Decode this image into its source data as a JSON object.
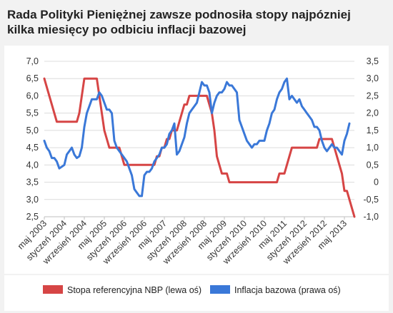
{
  "title": {
    "line1": "Rada Polityki Pieniężnej zawsze podnosiła stopy najpózniej",
    "line2": "kilka miesięcy po odbiciu inflacji bazowej"
  },
  "chart_data": {
    "type": "line",
    "x_labels": [
      "maj 2003",
      "styczeń 2004",
      "wrzesień 2004",
      "maj 2005",
      "styczeń 2006",
      "wrzesień 2006",
      "maj 2007",
      "styczeń 2008",
      "wrzesień 2008",
      "maj 2009",
      "styczeń 2010",
      "wrzesień 2010",
      "maj 2011",
      "styczeń 2012",
      "wrzesień 2012",
      "maj 2013"
    ],
    "x_label_month_index": [
      0,
      8,
      16,
      24,
      32,
      40,
      48,
      56,
      64,
      72,
      80,
      88,
      96,
      104,
      112,
      120
    ],
    "x_start": "2003-05",
    "left_axis": {
      "ylim": [
        2.5,
        7.0
      ],
      "ticks": [
        "7,0",
        "6,5",
        "6,0",
        "5,5",
        "5,0",
        "4,5",
        "4,0",
        "3,5",
        "3,0",
        "2,5"
      ],
      "tick_values": [
        7.0,
        6.5,
        6.0,
        5.5,
        5.0,
        4.5,
        4.0,
        3.5,
        3.0,
        2.5
      ]
    },
    "right_axis": {
      "ylim": [
        -1.0,
        3.5
      ],
      "ticks": [
        "3,5",
        "3,0",
        "2,5",
        "2,0",
        "1,5",
        "1,0",
        "0,5",
        "0",
        "-0,5",
        "-1,0"
      ],
      "tick_values": [
        3.5,
        3.0,
        2.5,
        2.0,
        1.5,
        1.0,
        0.5,
        0.0,
        -0.5,
        -1.0
      ]
    },
    "grid": true,
    "legend_position": "bottom",
    "series": [
      {
        "name": "Stopa referencyjna NBP (lewa oś)",
        "axis": "left",
        "color": "#d64545",
        "points": [
          [
            0,
            6.5
          ],
          [
            1,
            6.25
          ],
          [
            2,
            6.0
          ],
          [
            3,
            5.75
          ],
          [
            4,
            5.5
          ],
          [
            5,
            5.25
          ],
          [
            6,
            5.25
          ],
          [
            7,
            5.25
          ],
          [
            8,
            5.25
          ],
          [
            9,
            5.25
          ],
          [
            10,
            5.25
          ],
          [
            11,
            5.25
          ],
          [
            12,
            5.25
          ],
          [
            13,
            5.25
          ],
          [
            14,
            5.5
          ],
          [
            15,
            6.0
          ],
          [
            16,
            6.5
          ],
          [
            17,
            6.5
          ],
          [
            18,
            6.5
          ],
          [
            19,
            6.5
          ],
          [
            20,
            6.5
          ],
          [
            21,
            6.5
          ],
          [
            22,
            6.0
          ],
          [
            23,
            5.5
          ],
          [
            24,
            5.0
          ],
          [
            25,
            4.75
          ],
          [
            26,
            4.5
          ],
          [
            27,
            4.5
          ],
          [
            28,
            4.5
          ],
          [
            29,
            4.5
          ],
          [
            30,
            4.5
          ],
          [
            31,
            4.25
          ],
          [
            32,
            4.0
          ],
          [
            33,
            4.0
          ],
          [
            34,
            4.0
          ],
          [
            35,
            4.0
          ],
          [
            36,
            4.0
          ],
          [
            37,
            4.0
          ],
          [
            38,
            4.0
          ],
          [
            39,
            4.0
          ],
          [
            40,
            4.0
          ],
          [
            41,
            4.0
          ],
          [
            42,
            4.0
          ],
          [
            43,
            4.0
          ],
          [
            44,
            4.0
          ],
          [
            45,
            4.25
          ],
          [
            46,
            4.25
          ],
          [
            47,
            4.5
          ],
          [
            48,
            4.5
          ],
          [
            49,
            4.75
          ],
          [
            50,
            4.75
          ],
          [
            51,
            5.0
          ],
          [
            52,
            5.0
          ],
          [
            53,
            5.0
          ],
          [
            54,
            5.25
          ],
          [
            55,
            5.5
          ],
          [
            56,
            5.75
          ],
          [
            57,
            5.75
          ],
          [
            58,
            6.0
          ],
          [
            59,
            6.0
          ],
          [
            60,
            6.0
          ],
          [
            61,
            6.0
          ],
          [
            62,
            6.0
          ],
          [
            63,
            6.0
          ],
          [
            64,
            6.0
          ],
          [
            65,
            6.0
          ],
          [
            66,
            5.75
          ],
          [
            67,
            5.5
          ],
          [
            68,
            5.0
          ],
          [
            69,
            4.25
          ],
          [
            70,
            4.0
          ],
          [
            71,
            3.75
          ],
          [
            72,
            3.75
          ],
          [
            73,
            3.75
          ],
          [
            74,
            3.5
          ],
          [
            75,
            3.5
          ],
          [
            76,
            3.5
          ],
          [
            77,
            3.5
          ],
          [
            78,
            3.5
          ],
          [
            79,
            3.5
          ],
          [
            80,
            3.5
          ],
          [
            81,
            3.5
          ],
          [
            82,
            3.5
          ],
          [
            83,
            3.5
          ],
          [
            84,
            3.5
          ],
          [
            85,
            3.5
          ],
          [
            86,
            3.5
          ],
          [
            87,
            3.5
          ],
          [
            88,
            3.5
          ],
          [
            89,
            3.5
          ],
          [
            90,
            3.5
          ],
          [
            91,
            3.5
          ],
          [
            92,
            3.5
          ],
          [
            93,
            3.5
          ],
          [
            94,
            3.75
          ],
          [
            95,
            3.75
          ],
          [
            96,
            3.75
          ],
          [
            97,
            4.0
          ],
          [
            98,
            4.25
          ],
          [
            99,
            4.5
          ],
          [
            100,
            4.5
          ],
          [
            101,
            4.5
          ],
          [
            102,
            4.5
          ],
          [
            103,
            4.5
          ],
          [
            104,
            4.5
          ],
          [
            105,
            4.5
          ],
          [
            106,
            4.5
          ],
          [
            107,
            4.5
          ],
          [
            108,
            4.5
          ],
          [
            109,
            4.5
          ],
          [
            110,
            4.75
          ],
          [
            111,
            4.75
          ],
          [
            112,
            4.75
          ],
          [
            113,
            4.75
          ],
          [
            114,
            4.75
          ],
          [
            115,
            4.75
          ],
          [
            116,
            4.5
          ],
          [
            117,
            4.25
          ],
          [
            118,
            4.0
          ],
          [
            119,
            3.75
          ],
          [
            120,
            3.25
          ],
          [
            121,
            3.25
          ],
          [
            122,
            3.0
          ],
          [
            123,
            2.75
          ],
          [
            124,
            2.5
          ]
        ]
      },
      {
        "name": "Inflacja bazowa (prawa oś)",
        "axis": "right",
        "color": "#3a78d8",
        "points": [
          [
            0,
            1.2
          ],
          [
            1,
            1.0
          ],
          [
            2,
            0.9
          ],
          [
            3,
            0.7
          ],
          [
            4,
            0.7
          ],
          [
            5,
            0.6
          ],
          [
            6,
            0.4
          ],
          [
            7,
            0.45
          ],
          [
            8,
            0.5
          ],
          [
            9,
            0.8
          ],
          [
            10,
            0.9
          ],
          [
            11,
            1.0
          ],
          [
            12,
            0.8
          ],
          [
            13,
            0.7
          ],
          [
            14,
            0.75
          ],
          [
            15,
            1.0
          ],
          [
            16,
            1.6
          ],
          [
            17,
            2.0
          ],
          [
            18,
            2.2
          ],
          [
            19,
            2.4
          ],
          [
            20,
            2.4
          ],
          [
            21,
            2.4
          ],
          [
            22,
            2.6
          ],
          [
            23,
            2.5
          ],
          [
            24,
            2.3
          ],
          [
            25,
            2.1
          ],
          [
            26,
            2.1
          ],
          [
            27,
            2.0
          ],
          [
            28,
            1.2
          ],
          [
            29,
            1.0
          ],
          [
            30,
            0.9
          ],
          [
            31,
            0.8
          ],
          [
            32,
            0.7
          ],
          [
            33,
            0.6
          ],
          [
            34,
            0.4
          ],
          [
            35,
            0.2
          ],
          [
            36,
            -0.2
          ],
          [
            37,
            -0.3
          ],
          [
            38,
            -0.4
          ],
          [
            39,
            -0.4
          ],
          [
            40,
            0.2
          ],
          [
            41,
            0.3
          ],
          [
            42,
            0.3
          ],
          [
            43,
            0.4
          ],
          [
            44,
            0.6
          ],
          [
            45,
            0.7
          ],
          [
            46,
            0.8
          ],
          [
            47,
            1.0
          ],
          [
            48,
            1.0
          ],
          [
            49,
            1.1
          ],
          [
            50,
            1.4
          ],
          [
            51,
            1.5
          ],
          [
            52,
            1.7
          ],
          [
            53,
            0.8
          ],
          [
            54,
            0.9
          ],
          [
            55,
            1.1
          ],
          [
            56,
            1.3
          ],
          [
            57,
            1.7
          ],
          [
            58,
            2.0
          ],
          [
            59,
            2.1
          ],
          [
            60,
            2.2
          ],
          [
            61,
            2.3
          ],
          [
            62,
            2.6
          ],
          [
            63,
            2.9
          ],
          [
            64,
            2.8
          ],
          [
            65,
            2.8
          ],
          [
            66,
            2.6
          ],
          [
            67,
            2.0
          ],
          [
            68,
            2.3
          ],
          [
            69,
            2.5
          ],
          [
            70,
            2.6
          ],
          [
            71,
            2.6
          ],
          [
            72,
            2.7
          ],
          [
            73,
            2.9
          ],
          [
            74,
            2.8
          ],
          [
            75,
            2.8
          ],
          [
            76,
            2.7
          ],
          [
            77,
            2.6
          ],
          [
            78,
            1.8
          ],
          [
            79,
            1.6
          ],
          [
            80,
            1.4
          ],
          [
            81,
            1.2
          ],
          [
            82,
            1.1
          ],
          [
            83,
            1.0
          ],
          [
            84,
            1.1
          ],
          [
            85,
            1.1
          ],
          [
            86,
            1.2
          ],
          [
            87,
            1.2
          ],
          [
            88,
            1.2
          ],
          [
            89,
            1.5
          ],
          [
            90,
            1.7
          ],
          [
            91,
            2.0
          ],
          [
            92,
            2.1
          ],
          [
            93,
            2.4
          ],
          [
            94,
            2.6
          ],
          [
            95,
            2.7
          ],
          [
            96,
            2.9
          ],
          [
            97,
            3.0
          ],
          [
            98,
            2.4
          ],
          [
            99,
            2.5
          ],
          [
            100,
            2.4
          ],
          [
            101,
            2.3
          ],
          [
            102,
            2.4
          ],
          [
            103,
            2.2
          ],
          [
            104,
            2.1
          ],
          [
            105,
            2.0
          ],
          [
            106,
            1.9
          ],
          [
            107,
            1.8
          ],
          [
            108,
            1.6
          ],
          [
            109,
            1.6
          ],
          [
            110,
            1.5
          ],
          [
            111,
            1.2
          ],
          [
            112,
            1.0
          ],
          [
            113,
            0.9
          ],
          [
            114,
            1.0
          ],
          [
            115,
            1.1
          ],
          [
            116,
            1.0
          ],
          [
            117,
            1.0
          ],
          [
            118,
            0.9
          ],
          [
            119,
            0.8
          ],
          [
            120,
            1.2
          ],
          [
            121,
            1.4
          ],
          [
            122,
            1.7
          ]
        ]
      }
    ]
  }
}
